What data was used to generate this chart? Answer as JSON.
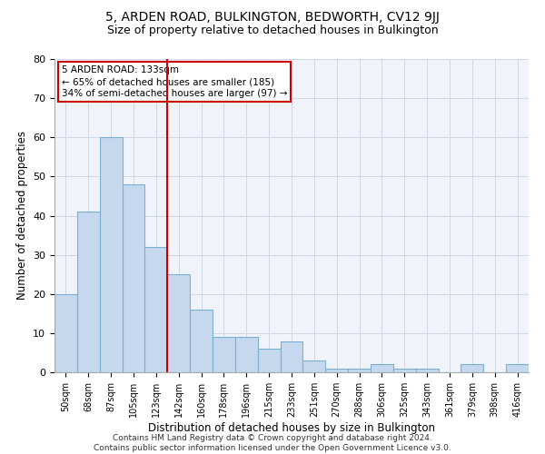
{
  "title": "5, ARDEN ROAD, BULKINGTON, BEDWORTH, CV12 9JJ",
  "subtitle": "Size of property relative to detached houses in Bulkington",
  "xlabel": "Distribution of detached houses by size in Bulkington",
  "ylabel": "Number of detached properties",
  "categories": [
    "50sqm",
    "68sqm",
    "87sqm",
    "105sqm",
    "123sqm",
    "142sqm",
    "160sqm",
    "178sqm",
    "196sqm",
    "215sqm",
    "233sqm",
    "251sqm",
    "270sqm",
    "288sqm",
    "306sqm",
    "325sqm",
    "343sqm",
    "361sqm",
    "379sqm",
    "398sqm",
    "416sqm"
  ],
  "values": [
    20,
    41,
    60,
    48,
    32,
    25,
    16,
    9,
    9,
    6,
    8,
    3,
    1,
    1,
    2,
    1,
    1,
    0,
    2,
    0,
    2
  ],
  "bar_color": "#c5d8ed",
  "bar_edge_color": "#7bafd4",
  "vline_x_index": 4.5,
  "vline_color": "#cc0000",
  "annotation_text": "5 ARDEN ROAD: 133sqm\n← 65% of detached houses are smaller (185)\n34% of semi-detached houses are larger (97) →",
  "annotation_box_color": "#cc0000",
  "ylim": [
    0,
    80
  ],
  "yticks": [
    0,
    10,
    20,
    30,
    40,
    50,
    60,
    70,
    80
  ],
  "grid_color": "#d0d8e8",
  "background_color": "#f0f4fa",
  "footer_text": "Contains HM Land Registry data © Crown copyright and database right 2024.\nContains public sector information licensed under the Open Government Licence v3.0.",
  "title_fontsize": 10,
  "subtitle_fontsize": 9,
  "label_fontsize": 8.5,
  "tick_fontsize": 8,
  "annotation_fontsize": 7.5,
  "footer_fontsize": 6.5
}
